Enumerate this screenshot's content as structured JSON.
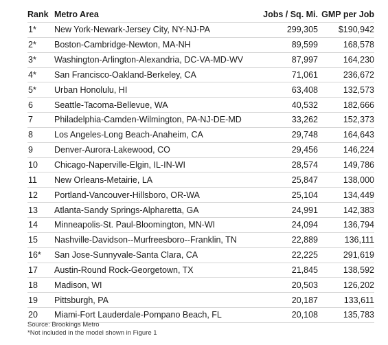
{
  "table": {
    "columns": {
      "rank": "Rank",
      "metro": "Metro Area",
      "jobs": "Jobs / Sq. Mi.",
      "gmp": "GMP per Job"
    },
    "rows": [
      {
        "rank": "1*",
        "metro": "New York-Newark-Jersey City, NY-NJ-PA",
        "jobs": "299,305",
        "gmp": "$190,942"
      },
      {
        "rank": "2*",
        "metro": "Boston-Cambridge-Newton, MA-NH",
        "jobs": "89,599",
        "gmp": "168,578"
      },
      {
        "rank": "3*",
        "metro": "Washington-Arlington-Alexandria, DC-VA-MD-WV",
        "jobs": "87,997",
        "gmp": "164,230"
      },
      {
        "rank": "4*",
        "metro": "San Francisco-Oakland-Berkeley, CA",
        "jobs": "71,061",
        "gmp": "236,672"
      },
      {
        "rank": "5*",
        "metro": "Urban Honolulu, HI",
        "jobs": "63,408",
        "gmp": "132,573"
      },
      {
        "rank": "6",
        "metro": "Seattle-Tacoma-Bellevue, WA",
        "jobs": "40,532",
        "gmp": "182,666"
      },
      {
        "rank": "7",
        "metro": "Philadelphia-Camden-Wilmington, PA-NJ-DE-MD",
        "jobs": "33,262",
        "gmp": "152,373"
      },
      {
        "rank": "8",
        "metro": "Los Angeles-Long Beach-Anaheim, CA",
        "jobs": "29,748",
        "gmp": "164,643"
      },
      {
        "rank": "9",
        "metro": "Denver-Aurora-Lakewood, CO",
        "jobs": "29,456",
        "gmp": "146,224"
      },
      {
        "rank": "10",
        "metro": "Chicago-Naperville-Elgin, IL-IN-WI",
        "jobs": "28,574",
        "gmp": "149,786"
      },
      {
        "rank": "11",
        "metro": "New Orleans-Metairie, LA",
        "jobs": "25,847",
        "gmp": "138,000"
      },
      {
        "rank": "12",
        "metro": "Portland-Vancouver-Hillsboro, OR-WA",
        "jobs": "25,104",
        "gmp": "134,449"
      },
      {
        "rank": "13",
        "metro": "Atlanta-Sandy Springs-Alpharetta, GA",
        "jobs": "24,991",
        "gmp": "142,383"
      },
      {
        "rank": "14",
        "metro": "Minneapolis-St. Paul-Bloomington, MN-WI",
        "jobs": "24,094",
        "gmp": "136,794"
      },
      {
        "rank": "15",
        "metro": "Nashville-Davidson--Murfreesboro--Franklin, TN",
        "jobs": "22,889",
        "gmp": "136,111"
      },
      {
        "rank": "16*",
        "metro": "San Jose-Sunnyvale-Santa Clara, CA",
        "jobs": "22,225",
        "gmp": "291,619"
      },
      {
        "rank": "17",
        "metro": "Austin-Round Rock-Georgetown, TX",
        "jobs": "21,845",
        "gmp": "138,592"
      },
      {
        "rank": "18",
        "metro": "Madison, WI",
        "jobs": "20,503",
        "gmp": "126,202"
      },
      {
        "rank": "19",
        "metro": "Pittsburgh, PA",
        "jobs": "20,187",
        "gmp": "133,611"
      },
      {
        "rank": "20",
        "metro": "Miami-Fort Lauderdale-Pompano Beach, FL",
        "jobs": "20,108",
        "gmp": "135,783"
      }
    ]
  },
  "footnotes": {
    "source": "Source: Brookings Metro",
    "note": "*Not included in the model shown in Figure 1"
  }
}
